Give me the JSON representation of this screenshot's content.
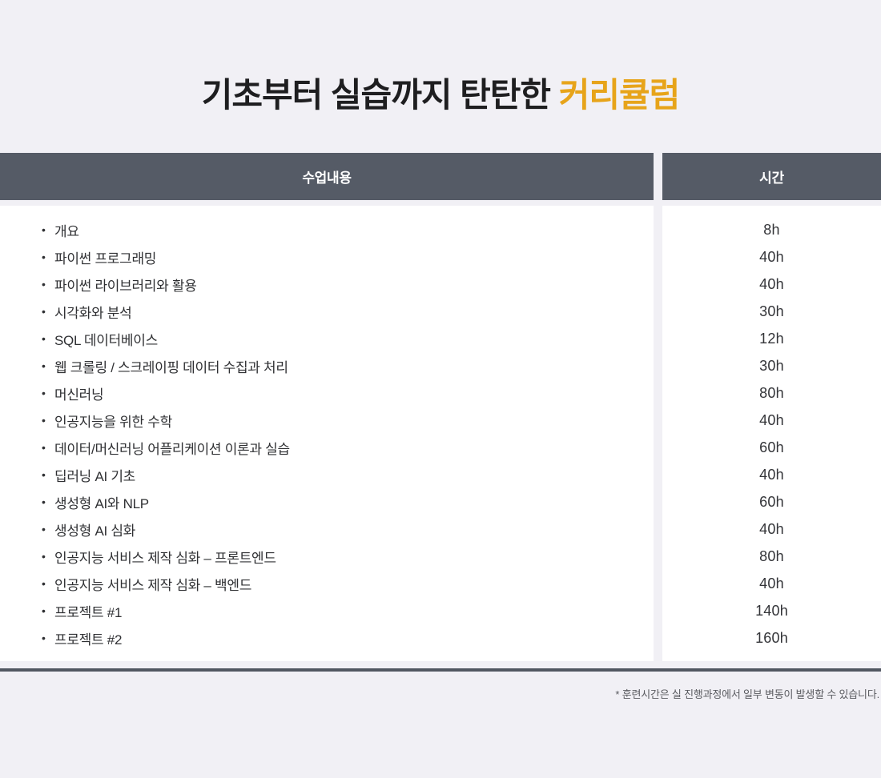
{
  "page": {
    "title_prefix": "기초부터 실습까지 탄탄한 ",
    "title_accent": "커리큘럼",
    "footnote": "* 훈련시간은 실 진행과정에서 일부 변동이 발생할 수 있습니다.",
    "colors": {
      "background": "#F1F0F5",
      "header_bg": "#555B66",
      "accent": "#E7A41A",
      "divider": "#515761",
      "body_text": "#2F3033"
    }
  },
  "table": {
    "headers": {
      "content": "수업내용",
      "hours": "시간"
    },
    "rows": [
      {
        "label": "개요",
        "hours": "8h"
      },
      {
        "label": "파이썬 프로그래밍",
        "hours": "40h"
      },
      {
        "label": "파이썬 라이브러리와 활용",
        "hours": "40h"
      },
      {
        "label": "시각화와 분석",
        "hours": "30h"
      },
      {
        "label": "SQL 데이터베이스",
        "hours": "12h"
      },
      {
        "label": "웹 크롤링 / 스크레이핑 데이터 수집과 처리",
        "hours": "30h"
      },
      {
        "label": "머신러닝",
        "hours": "80h"
      },
      {
        "label": "인공지능을 위한 수학",
        "hours": "40h"
      },
      {
        "label": "데이터/머신러닝 어플리케이션 이론과 실습",
        "hours": "60h"
      },
      {
        "label": "딥러닝 AI 기초",
        "hours": "40h"
      },
      {
        "label": "생성형 AI와 NLP",
        "hours": "60h"
      },
      {
        "label": "생성형 AI 심화",
        "hours": "40h"
      },
      {
        "label": "인공지능 서비스 제작 심화 – 프론트엔드",
        "hours": "80h"
      },
      {
        "label": "인공지능 서비스 제작 심화 – 백엔드",
        "hours": "40h"
      },
      {
        "label": "프로젝트 #1",
        "hours": "140h"
      },
      {
        "label": "프로젝트 #2",
        "hours": "160h"
      }
    ]
  }
}
